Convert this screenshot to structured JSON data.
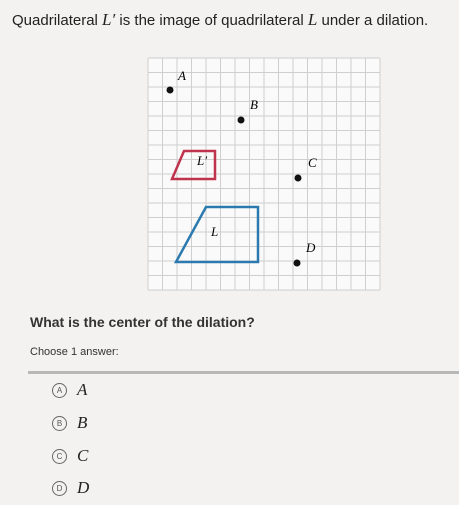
{
  "question": {
    "parts": [
      "Quadrilateral ",
      "L′",
      " is the image of quadrilateral ",
      "L",
      " under a dilation."
    ]
  },
  "figure": {
    "points": [
      "A",
      "B",
      "C",
      "D"
    ],
    "shapes": [
      "L′",
      "L"
    ]
  },
  "prompt": "What is the center of the dilation?",
  "instruction": "Choose 1 answer:",
  "choices": [
    {
      "letter": "A",
      "label": "A"
    },
    {
      "letter": "B",
      "label": "B"
    },
    {
      "letter": "C",
      "label": "C"
    },
    {
      "letter": "D",
      "label": "D"
    }
  ]
}
